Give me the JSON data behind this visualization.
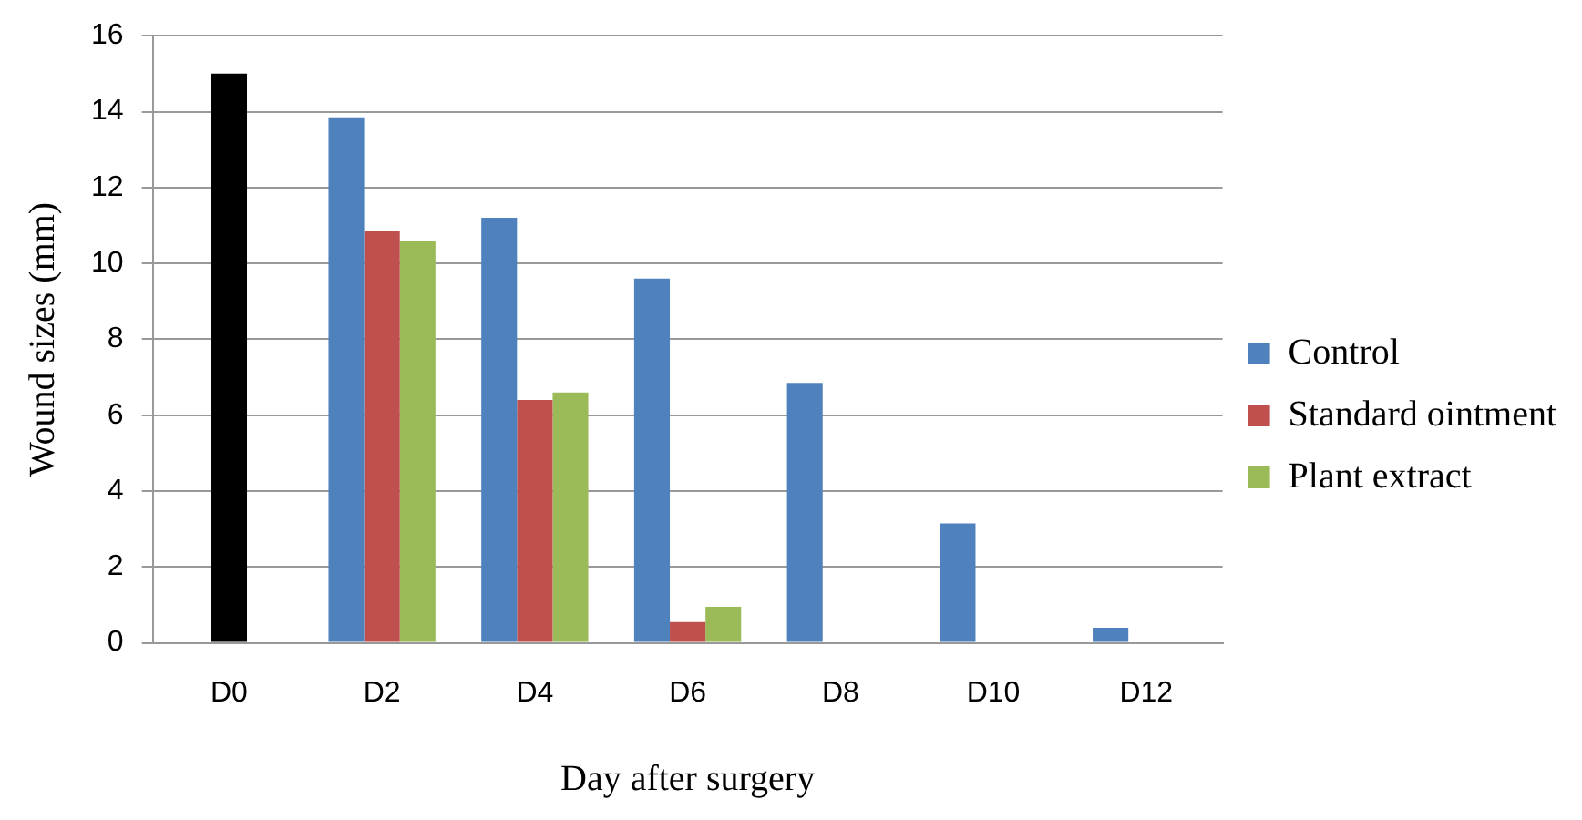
{
  "chart_data": {
    "type": "bar",
    "xlabel": "Day after surgery",
    "ylabel": "Wound sizes (mm)",
    "categories": [
      "D0",
      "D2",
      "D4",
      "D6",
      "D8",
      "D10",
      "D12"
    ],
    "series": [
      {
        "name": "Control",
        "color": "#4f81bd",
        "values": [
          null,
          13.85,
          11.2,
          9.6,
          6.85,
          3.15,
          0.4
        ]
      },
      {
        "name": "Standard ointment",
        "color": "#c0504d",
        "colors": [
          "#000000",
          "#c0504d",
          "#c0504d",
          "#c0504d",
          "#c0504d",
          "#c0504d",
          "#c0504d"
        ],
        "values": [
          15,
          10.85,
          6.4,
          0.55,
          null,
          null,
          null
        ]
      },
      {
        "name": "Plant extract",
        "color": "#9bbb59",
        "values": [
          null,
          10.6,
          6.6,
          0.95,
          null,
          null,
          null
        ]
      }
    ],
    "ylim": [
      0,
      16
    ],
    "yticks": [
      0,
      2,
      4,
      6,
      8,
      10,
      12,
      14,
      16
    ],
    "grid": "y",
    "legend": "right"
  }
}
